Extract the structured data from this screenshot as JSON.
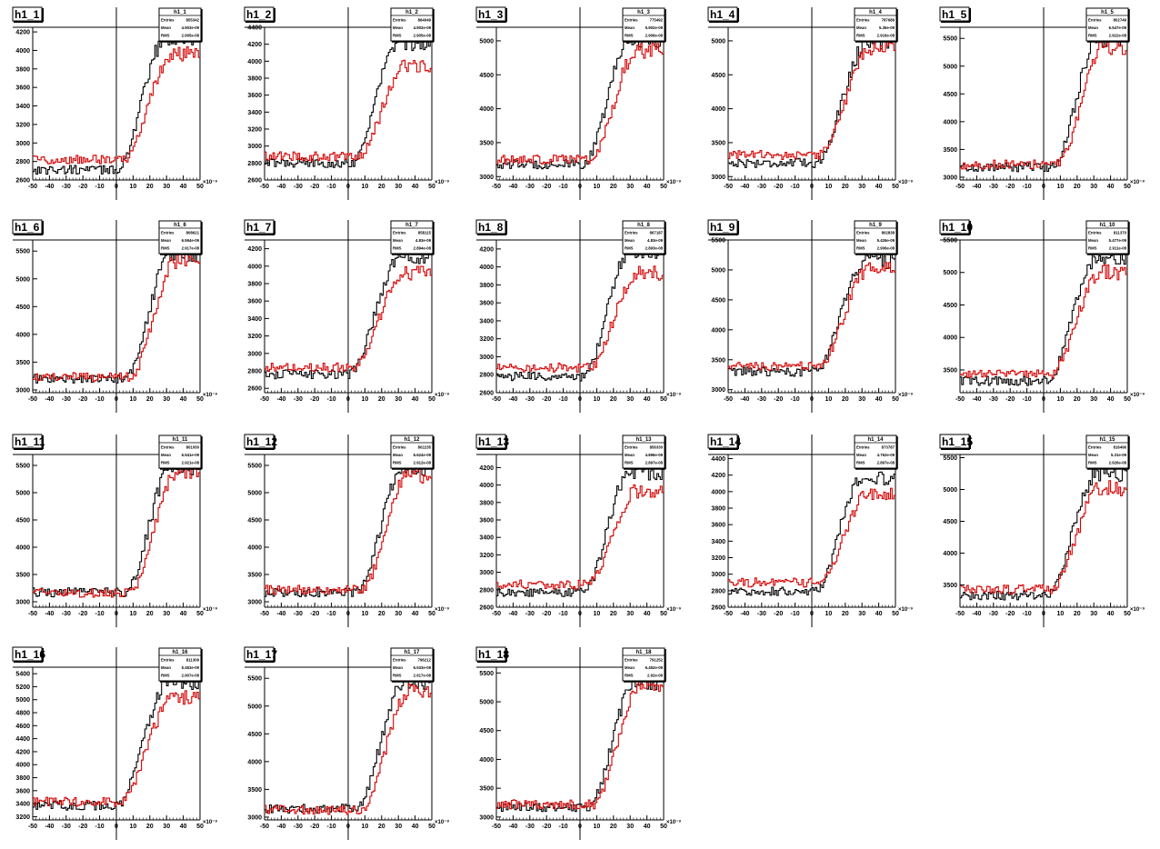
{
  "colors": {
    "series_black": "#000000",
    "series_red": "#d40000",
    "background": "#ffffff"
  },
  "stat_labels": {
    "entries": "Entries",
    "mean": "Mean",
    "rms": "RMS"
  },
  "x_axis_exponent": "×10⁻⁹",
  "chart_data": [
    {
      "type": "histogram",
      "title": "h1_1",
      "xlim": [
        -50,
        50
      ],
      "ylim": [
        2600,
        4250
      ],
      "xticks": [
        -50,
        -40,
        -30,
        -20,
        -10,
        0,
        10,
        20,
        30,
        40,
        50
      ],
      "yticks": [
        2600,
        2800,
        3000,
        3200,
        3400,
        3600,
        3800,
        4000,
        4200
      ],
      "ytick_labels": [
        "2600",
        "2800",
        "3000",
        "3200",
        "3400",
        "3600",
        "3800",
        "4000",
        "4200"
      ],
      "stats": {
        "title": "h1_1",
        "entries": "855342",
        "mean": "4.903e-09",
        "rms": "2.905e-08"
      },
      "series": [
        {
          "color": "black",
          "baseline": 2710,
          "plateau": 4140,
          "rise_start": 0,
          "rise_end": 30
        },
        {
          "color": "red",
          "baseline": 2820,
          "plateau": 3960,
          "rise_start": 4,
          "rise_end": 34
        }
      ]
    },
    {
      "type": "histogram",
      "title": "h1_2",
      "xlim": [
        -50,
        50
      ],
      "ylim": [
        2600,
        4400
      ],
      "xticks": [
        -50,
        -40,
        -30,
        -20,
        -10,
        0,
        10,
        20,
        30,
        40,
        50
      ],
      "yticks": [
        2600,
        2800,
        3000,
        3200,
        3400,
        3600,
        3800,
        4000,
        4200,
        4400
      ],
      "ytick_labels": [
        "2600",
        "2800",
        "3000",
        "3200",
        "3400",
        "3600",
        "3800",
        "4000",
        "4200",
        "4400"
      ],
      "stats": {
        "title": "h1_2",
        "entries": "864049",
        "mean": "4.902e-09",
        "rms": "2.905e-08"
      },
      "series": [
        {
          "color": "black",
          "baseline": 2800,
          "plateau": 4220,
          "rise_start": 2,
          "rise_end": 30
        },
        {
          "color": "red",
          "baseline": 2880,
          "plateau": 3950,
          "rise_start": 6,
          "rise_end": 34
        }
      ]
    },
    {
      "type": "histogram",
      "title": "h1_3",
      "xlim": [
        -50,
        50
      ],
      "ylim": [
        2950,
        5200
      ],
      "xticks": [
        -50,
        -40,
        -30,
        -20,
        -10,
        0,
        10,
        20,
        30,
        40,
        50
      ],
      "yticks": [
        3000,
        3500,
        4000,
        4500,
        5000
      ],
      "ytick_labels": [
        "3000",
        "3500",
        "4000",
        "4500",
        "5000"
      ],
      "stats": {
        "title": "h1_3",
        "entries": "775492",
        "mean": "5.902e-09",
        "rms": "2.906e-08"
      },
      "series": [
        {
          "color": "black",
          "baseline": 3180,
          "plateau": 5020,
          "rise_start": 2,
          "rise_end": 30
        },
        {
          "color": "red",
          "baseline": 3250,
          "plateau": 4850,
          "rise_start": 6,
          "rise_end": 34
        }
      ]
    },
    {
      "type": "histogram",
      "title": "h1_4",
      "xlim": [
        -50,
        50
      ],
      "ylim": [
        2950,
        5200
      ],
      "xticks": [
        -50,
        -40,
        -30,
        -20,
        -10,
        0,
        10,
        20,
        30,
        40,
        50
      ],
      "yticks": [
        3000,
        3500,
        4000,
        4500,
        5000
      ],
      "ytick_labels": [
        "3000",
        "3500",
        "4000",
        "4500",
        "5000"
      ],
      "stats": {
        "title": "h1_4",
        "entries": "787689",
        "mean": "5.36e-09",
        "rms": "2.916e-08"
      },
      "series": [
        {
          "color": "black",
          "baseline": 3200,
          "plateau": 5000,
          "rise_start": 2,
          "rise_end": 34
        },
        {
          "color": "red",
          "baseline": 3320,
          "plateau": 4900,
          "rise_start": 4,
          "rise_end": 36
        }
      ]
    },
    {
      "type": "histogram",
      "title": "h1_5",
      "xlim": [
        -50,
        50
      ],
      "ylim": [
        2950,
        5700
      ],
      "xticks": [
        -50,
        -40,
        -30,
        -20,
        -10,
        0,
        10,
        20,
        30,
        40,
        50
      ],
      "yticks": [
        3000,
        3500,
        4000,
        4500,
        5000,
        5500
      ],
      "ytick_labels": [
        "3000",
        "3500",
        "4000",
        "4500",
        "5000",
        "5500"
      ],
      "stats": {
        "title": "h1_5",
        "entries": "802749",
        "mean": "6.547e-09",
        "rms": "2.922e-08"
      },
      "series": [
        {
          "color": "black",
          "baseline": 3180,
          "plateau": 5500,
          "rise_start": 5,
          "rise_end": 33
        },
        {
          "color": "red",
          "baseline": 3230,
          "plateau": 5330,
          "rise_start": 8,
          "rise_end": 36
        }
      ]
    },
    {
      "type": "histogram",
      "title": "h1_6",
      "xlim": [
        -50,
        50
      ],
      "ylim": [
        2950,
        5700
      ],
      "xticks": [
        -50,
        -40,
        -30,
        -20,
        -10,
        0,
        10,
        20,
        30,
        40,
        50
      ],
      "yticks": [
        3000,
        3500,
        4000,
        4500,
        5000,
        5500
      ],
      "ytick_labels": [
        "3000",
        "3500",
        "4000",
        "4500",
        "5000",
        "5500"
      ],
      "stats": {
        "title": "h1_6",
        "entries": "808621",
        "mean": "6.594e-09",
        "rms": "2.917e-08"
      },
      "series": [
        {
          "color": "black",
          "baseline": 3200,
          "plateau": 5450,
          "rise_start": 5,
          "rise_end": 33
        },
        {
          "color": "red",
          "baseline": 3230,
          "plateau": 5330,
          "rise_start": 8,
          "rise_end": 36
        }
      ]
    },
    {
      "type": "histogram",
      "title": "h1_7",
      "xlim": [
        -50,
        50
      ],
      "ylim": [
        2550,
        4300
      ],
      "xticks": [
        -50,
        -40,
        -30,
        -20,
        -10,
        0,
        10,
        20,
        30,
        40,
        50
      ],
      "yticks": [
        2600,
        2800,
        3000,
        3200,
        3400,
        3600,
        3800,
        4000,
        4200
      ],
      "ytick_labels": [
        "2600",
        "2800",
        "3000",
        "3200",
        "3400",
        "3600",
        "3800",
        "4000",
        "4200"
      ],
      "stats": {
        "title": "h1_7",
        "entries": "858115",
        "mean": "4.83e-09",
        "rms": "2.894e-08"
      },
      "series": [
        {
          "color": "black",
          "baseline": 2760,
          "plateau": 4120,
          "rise_start": 0,
          "rise_end": 32
        },
        {
          "color": "red",
          "baseline": 2840,
          "plateau": 3920,
          "rise_start": 2,
          "rise_end": 34
        }
      ]
    },
    {
      "type": "histogram",
      "title": "h1_8",
      "xlim": [
        -50,
        50
      ],
      "ylim": [
        2600,
        4300
      ],
      "xticks": [
        -50,
        -40,
        -30,
        -20,
        -10,
        0,
        10,
        20,
        30,
        40,
        50
      ],
      "yticks": [
        2600,
        2800,
        3000,
        3200,
        3400,
        3600,
        3800,
        4000,
        4200
      ],
      "ytick_labels": [
        "2600",
        "2800",
        "3000",
        "3200",
        "3400",
        "3600",
        "3800",
        "4000",
        "4200"
      ],
      "stats": {
        "title": "h1_8",
        "entries": "867187",
        "mean": "4.83e-09",
        "rms": "2.893e-08"
      },
      "series": [
        {
          "color": "black",
          "baseline": 2780,
          "plateau": 4180,
          "rise_start": 2,
          "rise_end": 30
        },
        {
          "color": "red",
          "baseline": 2880,
          "plateau": 3930,
          "rise_start": 6,
          "rise_end": 34
        }
      ]
    },
    {
      "type": "histogram",
      "title": "h1_9",
      "xlim": [
        -50,
        50
      ],
      "ylim": [
        2950,
        5500
      ],
      "xticks": [
        -50,
        -40,
        -30,
        -20,
        -10,
        0,
        10,
        20,
        30,
        40,
        50
      ],
      "yticks": [
        3000,
        3500,
        4000,
        4500,
        5000,
        5500
      ],
      "ytick_labels": [
        "3000",
        "3500",
        "4000",
        "4500",
        "5000",
        "5500"
      ],
      "stats": {
        "title": "h1_9",
        "entries": "802838",
        "mean": "5.426e-09",
        "rms": "2.906e-08"
      },
      "series": [
        {
          "color": "black",
          "baseline": 3300,
          "plateau": 5150,
          "rise_start": 2,
          "rise_end": 32
        },
        {
          "color": "red",
          "baseline": 3400,
          "plateau": 5000,
          "rise_start": 4,
          "rise_end": 34
        }
      ]
    },
    {
      "type": "histogram",
      "title": "h1_10",
      "xlim": [
        -50,
        50
      ],
      "ylim": [
        3150,
        5500
      ],
      "xticks": [
        -50,
        -40,
        -30,
        -20,
        -10,
        0,
        10,
        20,
        30,
        40,
        50
      ],
      "yticks": [
        3500,
        4000,
        4500,
        5000,
        5500
      ],
      "ytick_labels": [
        "3500",
        "4000",
        "4500",
        "5000",
        "5500"
      ],
      "stats": {
        "title": "h1_10",
        "entries": "811370",
        "mean": "5.477e-09",
        "rms": "2.911e-08"
      },
      "series": [
        {
          "color": "black",
          "baseline": 3330,
          "plateau": 5250,
          "rise_start": 2,
          "rise_end": 32
        },
        {
          "color": "red",
          "baseline": 3430,
          "plateau": 5000,
          "rise_start": 4,
          "rise_end": 34
        }
      ]
    },
    {
      "type": "histogram",
      "title": "h1_11",
      "xlim": [
        -50,
        50
      ],
      "ylim": [
        2900,
        5700
      ],
      "xticks": [
        -50,
        -40,
        -30,
        -20,
        -10,
        0,
        10,
        20,
        30,
        40,
        50
      ],
      "yticks": [
        3000,
        3500,
        4000,
        4500,
        5000,
        5500
      ],
      "ytick_labels": [
        "3000",
        "3500",
        "4000",
        "4500",
        "5000",
        "5500"
      ],
      "stats": {
        "title": "h1_11",
        "entries": "801050",
        "mean": "6.541e-09",
        "rms": "2.921e-08"
      },
      "series": [
        {
          "color": "black",
          "baseline": 3170,
          "plateau": 5470,
          "rise_start": 5,
          "rise_end": 33
        },
        {
          "color": "red",
          "baseline": 3160,
          "plateau": 5400,
          "rise_start": 8,
          "rise_end": 36
        }
      ]
    },
    {
      "type": "histogram",
      "title": "h1_12",
      "xlim": [
        -50,
        50
      ],
      "ylim": [
        2900,
        5700
      ],
      "xticks": [
        -50,
        -40,
        -30,
        -20,
        -10,
        0,
        10,
        20,
        30,
        40,
        50
      ],
      "yticks": [
        3000,
        3500,
        4000,
        4500,
        5000,
        5500
      ],
      "ytick_labels": [
        "3000",
        "3500",
        "4000",
        "4500",
        "5000",
        "5500"
      ],
      "stats": {
        "title": "h1_12",
        "entries": "802235",
        "mean": "6.624e-09",
        "rms": "2.912e-08"
      },
      "series": [
        {
          "color": "black",
          "baseline": 3170,
          "plateau": 5450,
          "rise_start": 5,
          "rise_end": 33
        },
        {
          "color": "red",
          "baseline": 3220,
          "plateau": 5300,
          "rise_start": 8,
          "rise_end": 36
        }
      ]
    },
    {
      "type": "histogram",
      "title": "h1_13",
      "xlim": [
        -50,
        50
      ],
      "ylim": [
        2600,
        4350
      ],
      "xticks": [
        -50,
        -40,
        -30,
        -20,
        -10,
        0,
        10,
        20,
        30,
        40,
        50
      ],
      "yticks": [
        2600,
        2800,
        3000,
        3200,
        3400,
        3600,
        3800,
        4000,
        4200
      ],
      "ytick_labels": [
        "2600",
        "2800",
        "3000",
        "3200",
        "3400",
        "3600",
        "3800",
        "4000",
        "4200"
      ],
      "stats": {
        "title": "h1_13",
        "entries": "856330",
        "mean": "4.896e-09",
        "rms": "2.897e-08"
      },
      "series": [
        {
          "color": "black",
          "baseline": 2770,
          "plateau": 4150,
          "rise_start": 2,
          "rise_end": 30
        },
        {
          "color": "red",
          "baseline": 2860,
          "plateau": 3930,
          "rise_start": 4,
          "rise_end": 34
        }
      ]
    },
    {
      "type": "histogram",
      "title": "h1_14",
      "xlim": [
        -50,
        50
      ],
      "ylim": [
        2600,
        4450
      ],
      "xticks": [
        -50,
        -40,
        -30,
        -20,
        -10,
        0,
        10,
        20,
        30,
        40,
        50
      ],
      "yticks": [
        2600,
        2800,
        3000,
        3200,
        3400,
        3600,
        3800,
        4000,
        4200,
        4400
      ],
      "ytick_labels": [
        "2600",
        "2800",
        "3000",
        "3200",
        "3400",
        "3600",
        "3800",
        "4000",
        "4200",
        "4400"
      ],
      "stats": {
        "title": "h1_14",
        "entries": "873787",
        "mean": "4.762e-09",
        "rms": "2.897e-08"
      },
      "series": [
        {
          "color": "black",
          "baseline": 2790,
          "plateau": 4180,
          "rise_start": 2,
          "rise_end": 30
        },
        {
          "color": "red",
          "baseline": 2900,
          "plateau": 3970,
          "rise_start": 4,
          "rise_end": 34
        }
      ]
    },
    {
      "type": "histogram",
      "title": "h1_15",
      "xlim": [
        -50,
        50
      ],
      "ylim": [
        3150,
        5550
      ],
      "xticks": [
        -50,
        -40,
        -30,
        -20,
        -10,
        0,
        10,
        20,
        30,
        40,
        50
      ],
      "yticks": [
        3500,
        4000,
        4500,
        5000,
        5500
      ],
      "ytick_labels": [
        "3500",
        "4000",
        "4500",
        "5000",
        "5500"
      ],
      "stats": {
        "title": "h1_15",
        "entries": "816496",
        "mean": "5.31e-09",
        "rms": "2.926e-08"
      },
      "series": [
        {
          "color": "black",
          "baseline": 3330,
          "plateau": 5250,
          "rise_start": 2,
          "rise_end": 32
        },
        {
          "color": "red",
          "baseline": 3430,
          "plateau": 5020,
          "rise_start": 4,
          "rise_end": 34
        }
      ]
    },
    {
      "type": "histogram",
      "title": "h1_16",
      "xlim": [
        -50,
        50
      ],
      "ylim": [
        3150,
        5500
      ],
      "xticks": [
        -50,
        -40,
        -30,
        -20,
        -10,
        0,
        10,
        20,
        30,
        40,
        50
      ],
      "yticks": [
        3200,
        3400,
        3600,
        3800,
        4000,
        4200,
        4400,
        4600,
        4800,
        5000,
        5200,
        5400
      ],
      "ytick_labels": [
        "3200",
        "3400",
        "3600",
        "3800",
        "4000",
        "4200",
        "4400",
        "4600",
        "4800",
        "5000",
        "5200",
        "5400"
      ],
      "stats": {
        "title": "h1_16",
        "entries": "811309",
        "mean": "5.453e-09",
        "rms": "2.907e-08"
      },
      "series": [
        {
          "color": "black",
          "baseline": 3370,
          "plateau": 5280,
          "rise_start": 0,
          "rise_end": 32
        },
        {
          "color": "red",
          "baseline": 3430,
          "plateau": 5030,
          "rise_start": 2,
          "rise_end": 34
        }
      ]
    },
    {
      "type": "histogram",
      "title": "h1_17",
      "xlim": [
        -50,
        50
      ],
      "ylim": [
        2950,
        5700
      ],
      "xticks": [
        -50,
        -40,
        -30,
        -20,
        -10,
        0,
        10,
        20,
        30,
        40,
        50
      ],
      "yticks": [
        3000,
        3500,
        4000,
        4500,
        5000,
        5500
      ],
      "ytick_labels": [
        "3000",
        "3500",
        "4000",
        "4500",
        "5000",
        "5500"
      ],
      "stats": {
        "title": "h1_17",
        "entries": "796212",
        "mean": "6.533e-09",
        "rms": "2.917e-08"
      },
      "series": [
        {
          "color": "black",
          "baseline": 3150,
          "plateau": 5450,
          "rise_start": 5,
          "rise_end": 33
        },
        {
          "color": "red",
          "baseline": 3130,
          "plateau": 5250,
          "rise_start": 8,
          "rise_end": 36
        }
      ]
    },
    {
      "type": "histogram",
      "title": "h1_18",
      "xlim": [
        -50,
        50
      ],
      "ylim": [
        2950,
        5600
      ],
      "xticks": [
        -50,
        -40,
        -30,
        -20,
        -10,
        0,
        10,
        20,
        30,
        40,
        50
      ],
      "yticks": [
        3000,
        3500,
        4000,
        4500,
        5000,
        5500
      ],
      "ytick_labels": [
        "3000",
        "3500",
        "4000",
        "4500",
        "5000",
        "5500"
      ],
      "stats": {
        "title": "h1_18",
        "entries": "791252",
        "mean": "6.452e-09",
        "rms": "2.92e-08"
      },
      "series": [
        {
          "color": "black",
          "baseline": 3170,
          "plateau": 5350,
          "rise_start": 5,
          "rise_end": 33
        },
        {
          "color": "red",
          "baseline": 3220,
          "plateau": 5280,
          "rise_start": 8,
          "rise_end": 36
        }
      ]
    }
  ]
}
